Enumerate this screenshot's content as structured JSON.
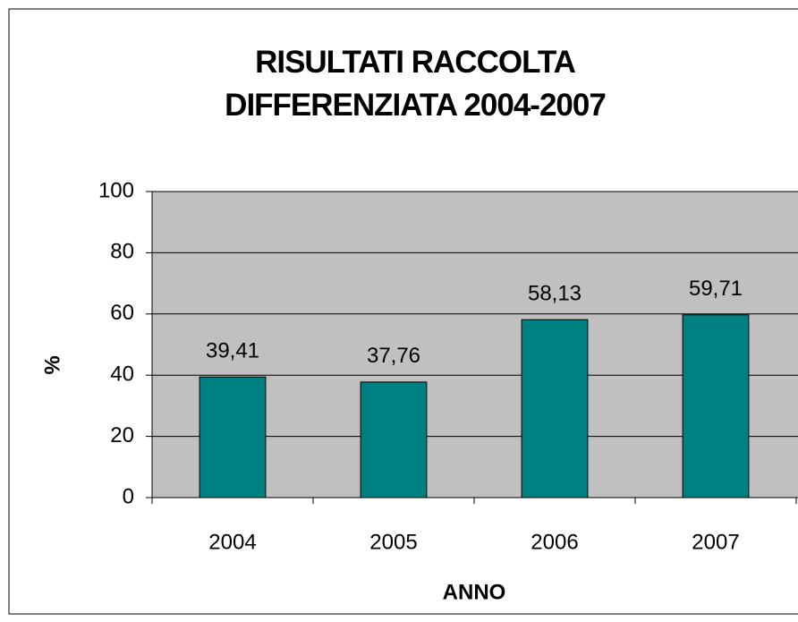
{
  "chart_data": {
    "type": "bar",
    "title": "RISULTATI RACCOLTA DIFFERENZIATA 2004-2007",
    "categories": [
      "2004",
      "2005",
      "2006",
      "2007"
    ],
    "values": [
      39.41,
      37.76,
      58.13,
      59.71
    ],
    "value_labels": [
      "39,41",
      "37,76",
      "58,13",
      "59,71"
    ],
    "color": "#008080",
    "xlabel": "ANNO",
    "ylabel": "%",
    "ylim": [
      0,
      100
    ],
    "yticks": [
      0,
      20,
      40,
      60,
      80,
      100
    ],
    "grid": true
  }
}
